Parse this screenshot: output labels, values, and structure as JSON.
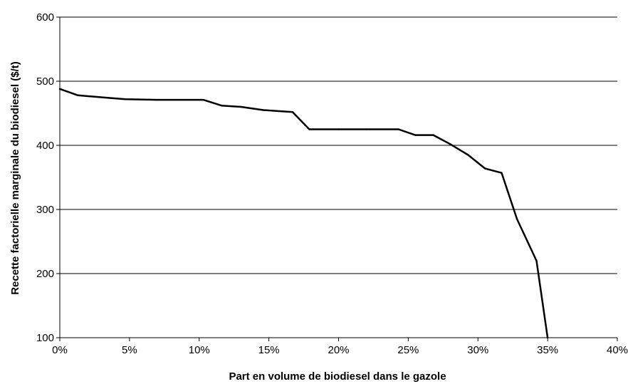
{
  "chart_data": {
    "type": "line",
    "title": "",
    "xlabel": "Part en volume de biodiesel dans le gazole",
    "ylabel": "Recette factorielle marginale du biodiesel ($/t)",
    "xlim": [
      0,
      40
    ],
    "ylim": [
      100,
      600
    ],
    "x_ticks": [
      0,
      5,
      10,
      15,
      20,
      25,
      30,
      35,
      40
    ],
    "x_tick_labels": [
      "0%",
      "5%",
      "10%",
      "15%",
      "20%",
      "25%",
      "30%",
      "35%",
      "40%"
    ],
    "y_ticks": [
      100,
      200,
      300,
      400,
      500,
      600
    ],
    "y_tick_labels": [
      "100",
      "200",
      "300",
      "400",
      "500",
      "600"
    ],
    "grid": "horizontal",
    "legend": "none",
    "series": [
      {
        "color": "#000000",
        "x": [
          0,
          1.3,
          3.5,
          4.7,
          7.0,
          10.3,
          11.6,
          13.0,
          14.6,
          16.7,
          17.9,
          20.0,
          22.0,
          24.3,
          25.5,
          26.8,
          28.0,
          29.3,
          30.5,
          31.7,
          32.8,
          34.2,
          35.0
        ],
        "values": [
          488,
          478,
          474,
          472,
          471,
          471,
          462,
          460,
          455,
          452,
          425,
          425,
          425,
          425,
          416,
          416,
          402,
          385,
          364,
          357,
          285,
          220,
          100
        ]
      }
    ]
  }
}
